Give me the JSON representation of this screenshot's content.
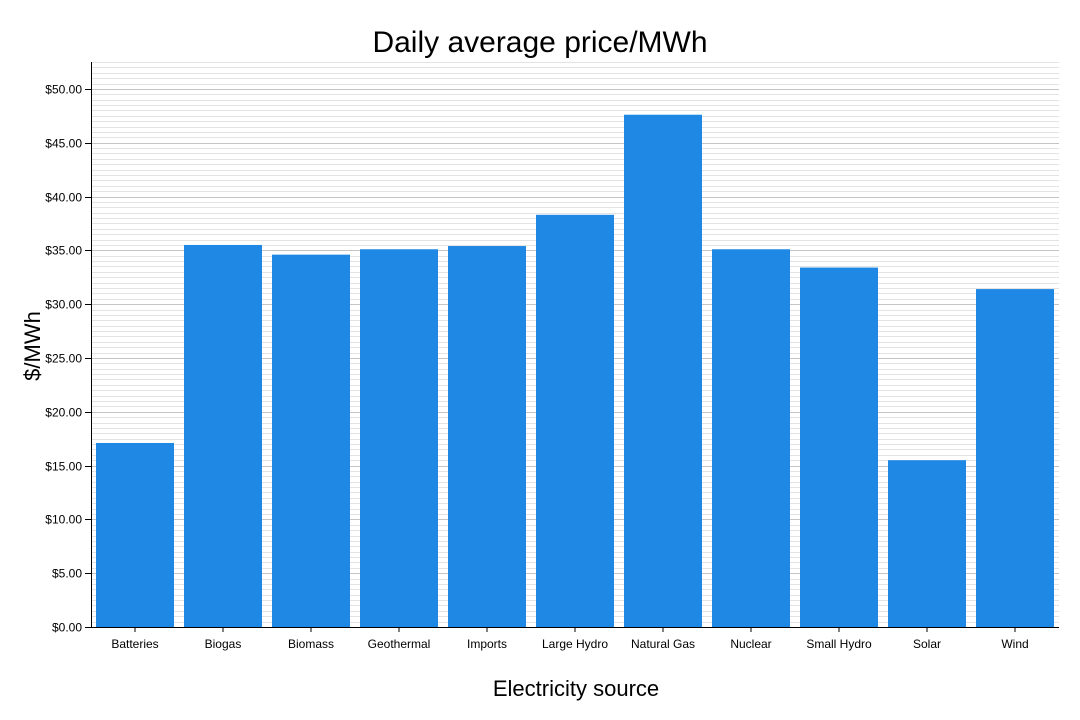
{
  "chart_data": {
    "type": "bar",
    "title": "Daily average price/MWh",
    "xlabel": "Electricity source",
    "ylabel": "$/MWh",
    "categories": [
      "Batteries",
      "Biogas",
      "Biomass",
      "Geothermal",
      "Imports",
      "Large Hydro",
      "Natural Gas",
      "Nuclear",
      "Small Hydro",
      "Solar",
      "Wind"
    ],
    "values": [
      17.1,
      35.5,
      34.6,
      35.1,
      35.4,
      38.3,
      47.6,
      35.1,
      33.4,
      15.5,
      31.4
    ],
    "ylim": [
      0,
      52.5
    ],
    "yticks": [
      0,
      5,
      10,
      15,
      20,
      25,
      30,
      35,
      40,
      45,
      50
    ],
    "ytick_labels": [
      "$0.00",
      "$5.00",
      "$10.00",
      "$15.00",
      "$20.00",
      "$25.00",
      "$30.00",
      "$35.00",
      "$40.00",
      "$45.00",
      "$50.00"
    ],
    "grid": true,
    "bar_color": "#1f88e5"
  }
}
